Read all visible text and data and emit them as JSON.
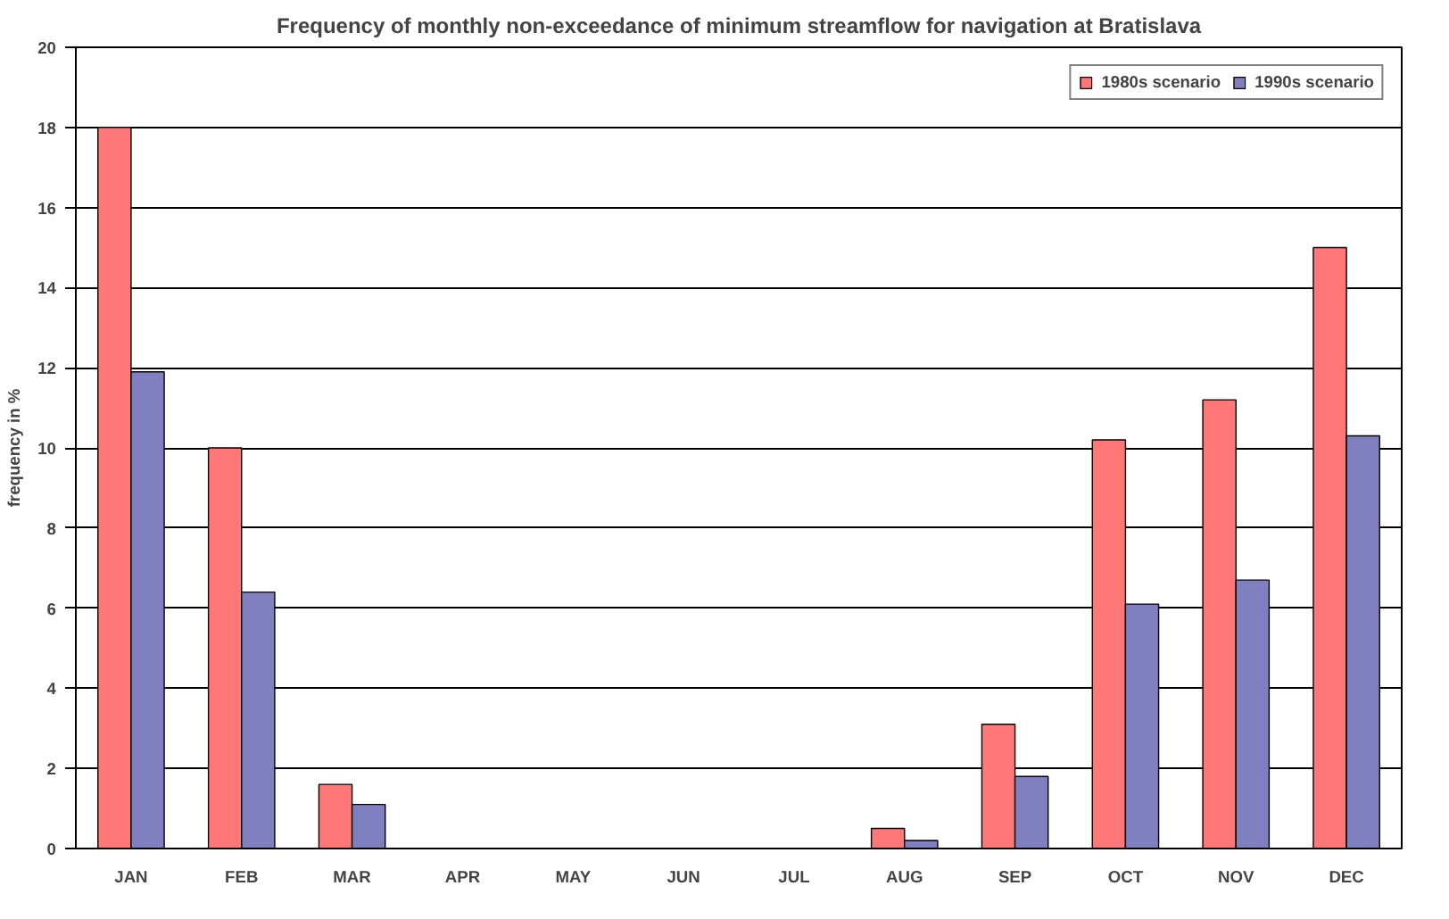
{
  "chart_data": {
    "type": "bar",
    "title": "Frequency of monthly non-exceedance of minimum streamflow for navigation at Bratislava",
    "ylabel": "frequency in %",
    "categories": [
      "JAN",
      "FEB",
      "MAR",
      "APR",
      "MAY",
      "JUN",
      "JUL",
      "AUG",
      "SEP",
      "OCT",
      "NOV",
      "DEC"
    ],
    "series": [
      {
        "name": "1980s scenario",
        "color": "#ff7777",
        "values": [
          18,
          10,
          1.6,
          0,
          0,
          0,
          0,
          0.5,
          3.1,
          10.2,
          11.2,
          15
        ]
      },
      {
        "name": "1990s scenario",
        "color": "#8080c0",
        "values": [
          11.9,
          6.4,
          1.1,
          0,
          0,
          0,
          0,
          0.2,
          1.8,
          6.1,
          6.7,
          10.3
        ]
      }
    ],
    "ylim": [
      0,
      20
    ],
    "yticks": [
      0,
      2,
      4,
      6,
      8,
      10,
      12,
      14,
      16,
      18,
      20
    ],
    "grid": "y",
    "legend": "top right"
  }
}
